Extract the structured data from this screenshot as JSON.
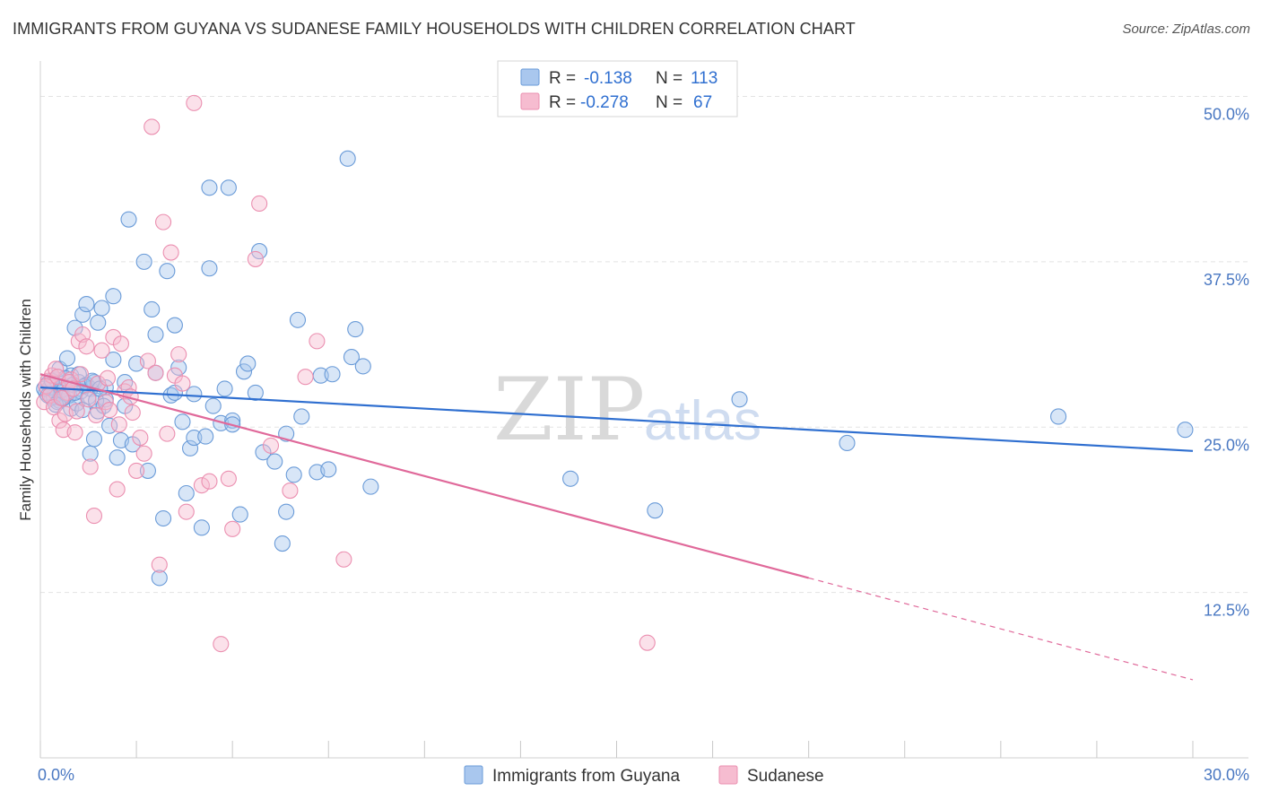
{
  "title": "IMMIGRANTS FROM GUYANA VS SUDANESE FAMILY HOUSEHOLDS WITH CHILDREN CORRELATION CHART",
  "source": "Source: ZipAtlas.com",
  "watermark": {
    "zip": "ZIP",
    "atlas": "atlas"
  },
  "legend": {
    "r_label": "R =",
    "n_label": "N =",
    "rows": [
      {
        "r": "-0.138",
        "n": "113"
      },
      {
        "r": "-0.278",
        "n": "67"
      }
    ]
  },
  "colors": {
    "guyana_fill": "#a9c7ee",
    "guyana_stroke": "#6a9bd8",
    "guyana_line": "#2f6fd0",
    "sudanese_fill": "#f6bcd0",
    "sudanese_stroke": "#eb8fb0",
    "sudanese_line": "#e0699a",
    "grid": "#e3e3e3",
    "tick_label": "#4a78c2"
  },
  "chart_data": {
    "type": "scatter",
    "title": "IMMIGRANTS FROM GUYANA VS SUDANESE FAMILY HOUSEHOLDS WITH CHILDREN CORRELATION CHART",
    "xlabel": "",
    "ylabel": "Family Households with Children",
    "xlim": [
      0,
      30
    ],
    "ylim": [
      0,
      52
    ],
    "x_tick_labels": [
      {
        "value": 0,
        "label": "0.0%"
      },
      {
        "value": 30,
        "label": "30.0%"
      }
    ],
    "y_tick_labels": [
      {
        "value": 12.5,
        "label": "12.5%"
      },
      {
        "value": 25,
        "label": "25.0%"
      },
      {
        "value": 37.5,
        "label": "37.5%"
      },
      {
        "value": 50,
        "label": "50.0%"
      }
    ],
    "grid": true,
    "legend_position": "top-center",
    "series": [
      {
        "name": "Immigrants from Guyana",
        "r": -0.138,
        "n": 113,
        "trend": {
          "x": [
            0,
            30
          ],
          "y": [
            28.0,
            23.2
          ],
          "dashed_from_x": null
        },
        "points": [
          [
            0.2,
            28.3
          ],
          [
            0.3,
            27.2
          ],
          [
            0.4,
            28.6
          ],
          [
            0.5,
            27.0
          ],
          [
            0.5,
            29.4
          ],
          [
            0.6,
            28.1
          ],
          [
            0.7,
            30.2
          ],
          [
            0.7,
            27.5
          ],
          [
            0.8,
            28.9
          ],
          [
            0.8,
            26.4
          ],
          [
            0.9,
            32.5
          ],
          [
            1.0,
            28.4
          ],
          [
            1.0,
            29.0
          ],
          [
            1.1,
            33.5
          ],
          [
            1.2,
            34.3
          ],
          [
            1.2,
            28.2
          ],
          [
            1.3,
            27.9
          ],
          [
            1.3,
            23.0
          ],
          [
            1.4,
            28.4
          ],
          [
            1.4,
            24.1
          ],
          [
            1.5,
            26.2
          ],
          [
            1.5,
            32.9
          ],
          [
            1.6,
            34.0
          ],
          [
            1.7,
            28.0
          ],
          [
            1.7,
            27.1
          ],
          [
            1.8,
            25.1
          ],
          [
            1.9,
            34.9
          ],
          [
            1.9,
            30.1
          ],
          [
            2.0,
            22.7
          ],
          [
            2.1,
            24.0
          ],
          [
            2.2,
            26.6
          ],
          [
            2.2,
            28.4
          ],
          [
            2.3,
            40.7
          ],
          [
            2.4,
            23.7
          ],
          [
            2.5,
            29.8
          ],
          [
            2.7,
            37.5
          ],
          [
            2.8,
            21.7
          ],
          [
            2.9,
            33.9
          ],
          [
            3.0,
            32.0
          ],
          [
            3.0,
            29.1
          ],
          [
            3.1,
            13.6
          ],
          [
            3.2,
            18.1
          ],
          [
            3.3,
            36.8
          ],
          [
            3.4,
            27.4
          ],
          [
            3.5,
            32.7
          ],
          [
            3.5,
            27.6
          ],
          [
            3.6,
            29.5
          ],
          [
            3.7,
            25.4
          ],
          [
            3.8,
            20.0
          ],
          [
            3.9,
            23.4
          ],
          [
            4.0,
            24.2
          ],
          [
            4.0,
            27.5
          ],
          [
            4.2,
            17.4
          ],
          [
            4.3,
            24.3
          ],
          [
            4.4,
            43.1
          ],
          [
            4.4,
            37.0
          ],
          [
            4.5,
            26.6
          ],
          [
            4.7,
            25.3
          ],
          [
            4.8,
            27.9
          ],
          [
            4.9,
            43.1
          ],
          [
            5.0,
            25.5
          ],
          [
            5.0,
            25.2
          ],
          [
            5.2,
            18.4
          ],
          [
            5.3,
            29.2
          ],
          [
            5.4,
            29.8
          ],
          [
            5.6,
            27.6
          ],
          [
            5.7,
            38.3
          ],
          [
            5.8,
            23.1
          ],
          [
            6.1,
            22.4
          ],
          [
            6.3,
            16.2
          ],
          [
            6.4,
            18.6
          ],
          [
            6.4,
            24.5
          ],
          [
            6.6,
            21.4
          ],
          [
            6.7,
            33.1
          ],
          [
            6.8,
            25.8
          ],
          [
            7.2,
            21.6
          ],
          [
            7.3,
            28.9
          ],
          [
            7.5,
            21.8
          ],
          [
            7.6,
            29.0
          ],
          [
            8.0,
            45.3
          ],
          [
            8.1,
            30.3
          ],
          [
            8.2,
            32.4
          ],
          [
            8.4,
            29.6
          ],
          [
            8.6,
            20.5
          ],
          [
            13.8,
            21.1
          ],
          [
            16.0,
            18.7
          ],
          [
            18.2,
            27.1
          ],
          [
            21.0,
            23.8
          ],
          [
            26.5,
            25.8
          ],
          [
            29.8,
            24.8
          ],
          [
            0.15,
            27.6
          ],
          [
            0.25,
            28.0
          ],
          [
            0.35,
            27.3
          ],
          [
            0.45,
            26.9
          ],
          [
            0.55,
            27.8
          ],
          [
            0.65,
            28.7
          ],
          [
            0.75,
            27.4
          ],
          [
            0.85,
            28.2
          ],
          [
            0.95,
            26.8
          ],
          [
            1.05,
            27.7
          ],
          [
            1.15,
            28.1
          ],
          [
            1.25,
            27.3
          ],
          [
            1.35,
            28.5
          ],
          [
            1.45,
            27.0
          ],
          [
            1.55,
            27.9
          ],
          [
            1.65,
            26.6
          ],
          [
            0.1,
            27.9
          ],
          [
            0.2,
            27.4
          ],
          [
            0.3,
            28.5
          ],
          [
            0.4,
            26.7
          ],
          [
            0.6,
            27.2
          ],
          [
            0.9,
            27.6
          ],
          [
            1.1,
            26.3
          ]
        ]
      },
      {
        "name": "Sudanese",
        "r": -0.278,
        "n": 67,
        "trend": {
          "x": [
            0,
            30
          ],
          "y": [
            29.0,
            5.9
          ],
          "dashed_from_x": 20.0
        },
        "points": [
          [
            0.1,
            26.9
          ],
          [
            0.2,
            28.5
          ],
          [
            0.3,
            28.9
          ],
          [
            0.4,
            29.4
          ],
          [
            0.5,
            25.5
          ],
          [
            0.6,
            24.8
          ],
          [
            0.7,
            27.6
          ],
          [
            0.8,
            28.6
          ],
          [
            0.9,
            24.6
          ],
          [
            1.0,
            31.5
          ],
          [
            1.1,
            32.0
          ],
          [
            1.2,
            31.1
          ],
          [
            1.3,
            22.0
          ],
          [
            1.4,
            18.3
          ],
          [
            1.5,
            28.3
          ],
          [
            1.6,
            30.8
          ],
          [
            1.7,
            26.9
          ],
          [
            1.8,
            26.3
          ],
          [
            1.9,
            31.8
          ],
          [
            2.0,
            20.3
          ],
          [
            2.1,
            31.3
          ],
          [
            2.2,
            27.7
          ],
          [
            2.3,
            28.0
          ],
          [
            2.4,
            26.1
          ],
          [
            2.5,
            21.7
          ],
          [
            2.6,
            24.2
          ],
          [
            2.7,
            23.0
          ],
          [
            2.8,
            30.0
          ],
          [
            2.9,
            47.7
          ],
          [
            3.0,
            29.1
          ],
          [
            3.1,
            14.6
          ],
          [
            3.2,
            40.5
          ],
          [
            3.3,
            24.5
          ],
          [
            3.4,
            38.2
          ],
          [
            3.5,
            28.9
          ],
          [
            3.6,
            30.5
          ],
          [
            3.7,
            28.3
          ],
          [
            3.8,
            18.6
          ],
          [
            4.0,
            49.5
          ],
          [
            4.2,
            20.6
          ],
          [
            4.4,
            20.9
          ],
          [
            4.7,
            8.6
          ],
          [
            4.9,
            21.1
          ],
          [
            5.0,
            17.3
          ],
          [
            5.6,
            37.7
          ],
          [
            5.7,
            41.9
          ],
          [
            6.0,
            23.6
          ],
          [
            6.5,
            20.2
          ],
          [
            6.9,
            28.8
          ],
          [
            7.2,
            31.5
          ],
          [
            7.9,
            15.0
          ],
          [
            15.8,
            8.7
          ],
          [
            0.15,
            28.1
          ],
          [
            0.25,
            27.4
          ],
          [
            0.35,
            26.5
          ],
          [
            0.45,
            28.8
          ],
          [
            0.55,
            27.2
          ],
          [
            0.65,
            26.0
          ],
          [
            0.75,
            28.4
          ],
          [
            0.85,
            27.9
          ],
          [
            0.95,
            26.2
          ],
          [
            1.05,
            29.0
          ],
          [
            1.25,
            27.1
          ],
          [
            1.45,
            25.9
          ],
          [
            1.75,
            28.7
          ],
          [
            2.05,
            25.2
          ],
          [
            2.35,
            27.3
          ]
        ]
      }
    ]
  }
}
